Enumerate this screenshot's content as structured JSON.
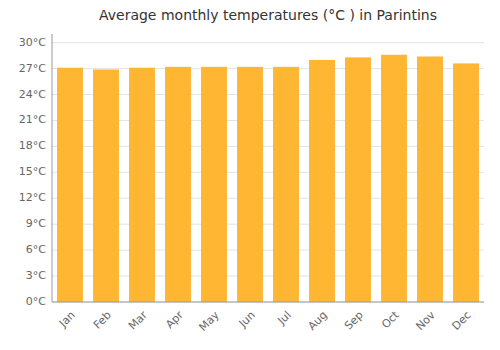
{
  "chart_data": {
    "type": "bar",
    "title": "Average monthly temperatures (°C ) in Parintins",
    "categories": [
      "Jan",
      "Feb",
      "Mar",
      "Apr",
      "May",
      "Jun",
      "Jul",
      "Aug",
      "Sep",
      "Oct",
      "Nov",
      "Dec"
    ],
    "values": [
      27.1,
      26.9,
      27.1,
      27.2,
      27.2,
      27.2,
      27.2,
      28.0,
      28.3,
      28.6,
      28.4,
      27.6
    ],
    "color": "#FFB733",
    "ylim": [
      0,
      31
    ],
    "yticks": [
      {
        "value": 0,
        "label": "0°C"
      },
      {
        "value": 3,
        "label": "3°C"
      },
      {
        "value": 6,
        "label": "6°C"
      },
      {
        "value": 9,
        "label": "9°C"
      },
      {
        "value": 12,
        "label": "12°C"
      },
      {
        "value": 15,
        "label": "15°C"
      },
      {
        "value": 18,
        "label": "18°C"
      },
      {
        "value": 21,
        "label": "21°C"
      },
      {
        "value": 24,
        "label": "24°C"
      },
      {
        "value": 27,
        "label": "27°C"
      },
      {
        "value": 30,
        "label": "30°C"
      }
    ],
    "grid": true
  }
}
